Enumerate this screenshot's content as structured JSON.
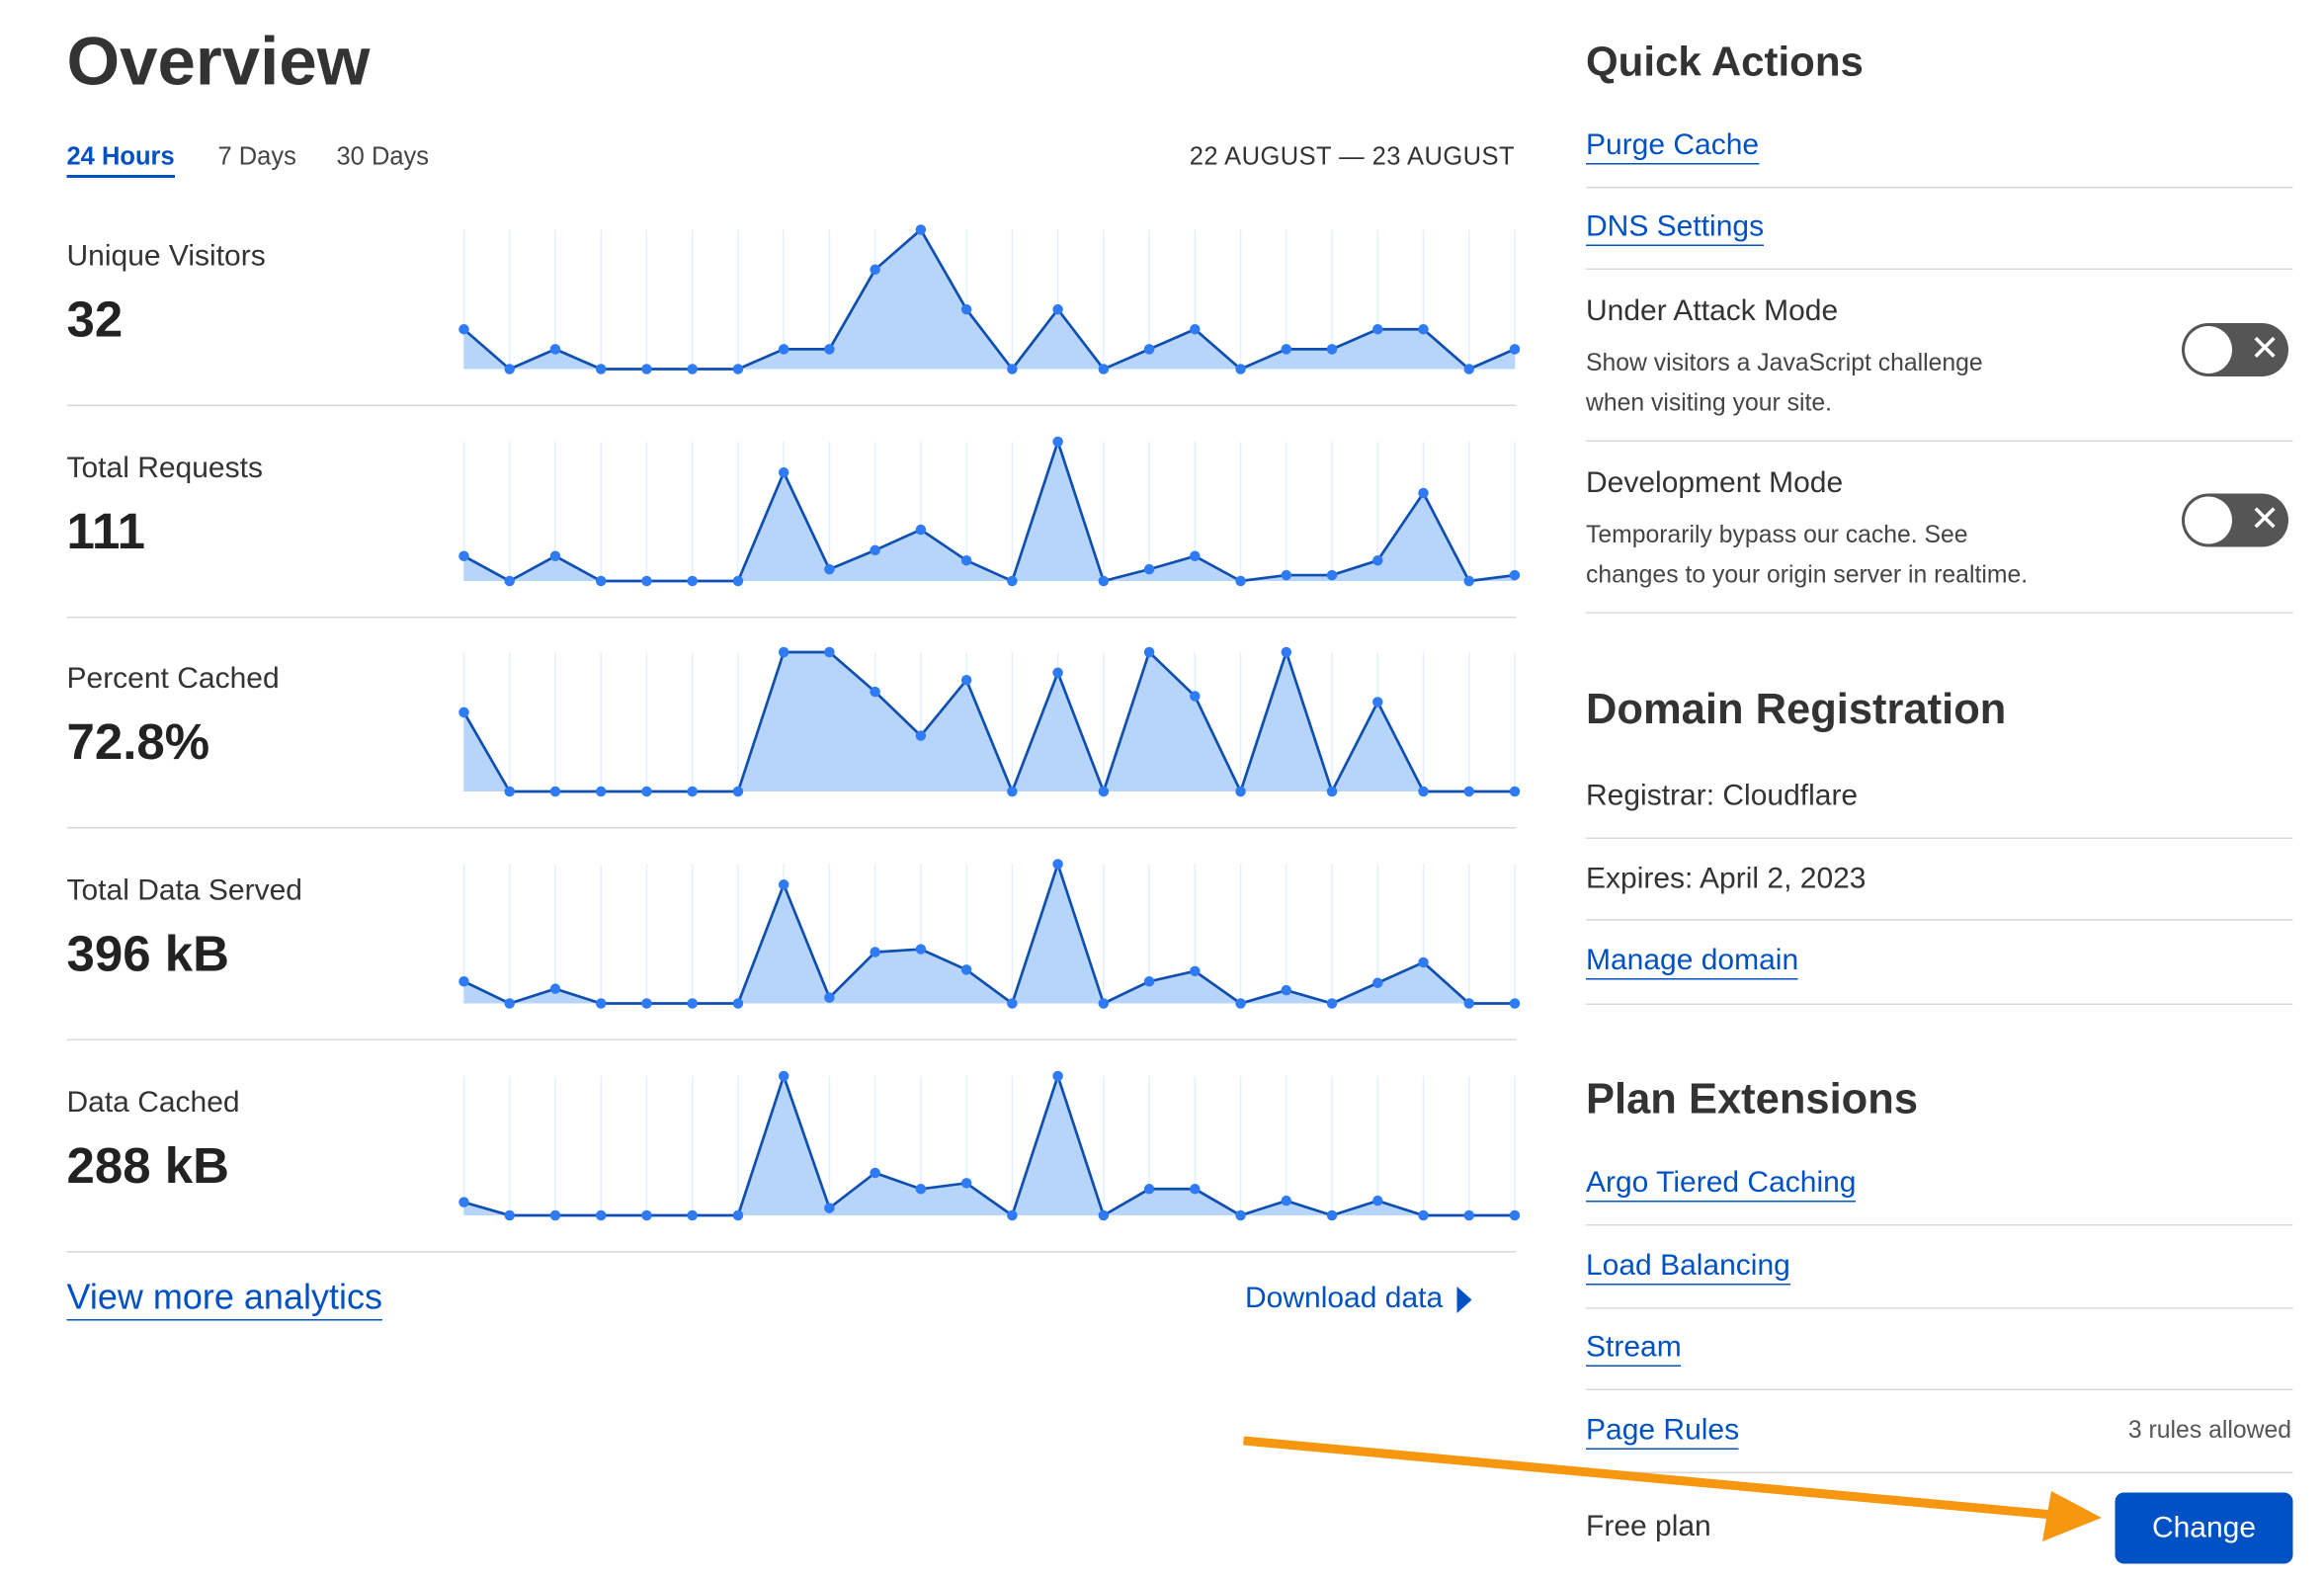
{
  "overview": {
    "title": "Overview",
    "tabs": [
      {
        "label": "24 Hours",
        "active": true
      },
      {
        "label": "7 Days",
        "active": false
      },
      {
        "label": "30 Days",
        "active": false
      }
    ],
    "date_range": "22 AUGUST — 23 AUGUST",
    "metrics": [
      {
        "label": "Unique Visitors",
        "value": "32"
      },
      {
        "label": "Total Requests",
        "value": "111"
      },
      {
        "label": "Percent Cached",
        "value": "72.8%"
      },
      {
        "label": "Total Data Served",
        "value": "396 kB"
      },
      {
        "label": "Data Cached",
        "value": "288 kB"
      }
    ],
    "view_more": "View more analytics",
    "download": "Download data"
  },
  "chart_data": [
    {
      "type": "area",
      "series": [
        {
          "values": [
            2,
            0,
            1,
            0,
            0,
            0,
            0,
            1,
            1,
            5,
            7,
            3,
            0,
            3,
            0,
            1,
            2,
            0,
            1,
            1,
            2,
            2,
            0,
            1
          ]
        }
      ],
      "grid": true,
      "color": "#2f7bf5",
      "fill": "#b7d4fb"
    },
    {
      "type": "area",
      "series": [
        {
          "values": [
            17,
            0,
            17,
            0,
            0,
            0,
            0,
            74,
            8,
            21,
            35,
            14,
            0,
            95,
            0,
            8,
            17,
            0,
            4,
            4,
            14,
            60,
            0,
            4
          ]
        }
      ],
      "grid": true,
      "color": "#2f7bf5",
      "fill": "#b7d4fb"
    },
    {
      "type": "area",
      "series": [
        {
          "values": [
            54,
            0,
            0,
            0,
            0,
            0,
            0,
            95,
            95,
            68,
            38,
            76,
            0,
            81,
            0,
            95,
            65,
            0,
            95,
            0,
            61,
            0,
            0,
            0
          ]
        }
      ],
      "grid": true,
      "color": "#2f7bf5",
      "fill": "#b7d4fb"
    },
    {
      "type": "area",
      "series": [
        {
          "values": [
            15,
            0,
            10,
            0,
            0,
            0,
            0,
            81,
            4,
            35,
            37,
            23,
            0,
            95,
            0,
            15,
            22,
            0,
            9,
            0,
            14,
            28,
            0,
            0
          ]
        }
      ],
      "grid": true,
      "color": "#2f7bf5",
      "fill": "#b7d4fb"
    },
    {
      "type": "area",
      "series": [
        {
          "values": [
            9,
            0,
            0,
            0,
            0,
            0,
            0,
            95,
            5,
            29,
            18,
            22,
            0,
            95,
            0,
            18,
            18,
            0,
            10,
            0,
            10,
            0,
            0,
            0
          ]
        }
      ],
      "grid": true,
      "color": "#2f7bf5",
      "fill": "#b7d4fb"
    }
  ],
  "quick_actions": {
    "title": "Quick Actions",
    "links": [
      "Purge Cache",
      "DNS Settings"
    ],
    "toggles": [
      {
        "label": "Under Attack Mode",
        "desc1": "Show visitors a JavaScript challenge",
        "desc2": "when visiting your site.",
        "on": false
      },
      {
        "label": "Development Mode",
        "desc1": "Temporarily bypass our cache. See",
        "desc2": "changes to your origin server in realtime.",
        "on": false
      }
    ]
  },
  "domain_registration": {
    "title": "Domain Registration",
    "registrar": "Registrar: Cloudflare",
    "expires": "Expires: April 2, 2023",
    "manage": "Manage domain"
  },
  "plan_extensions": {
    "title": "Plan Extensions",
    "links": [
      "Argo Tiered Caching",
      "Load Balancing",
      "Stream",
      "Page Rules"
    ],
    "page_rules_note": "3 rules allowed",
    "plan": "Free plan",
    "change": "Change"
  },
  "annotation": {
    "arrow_color": "#f7960f"
  }
}
